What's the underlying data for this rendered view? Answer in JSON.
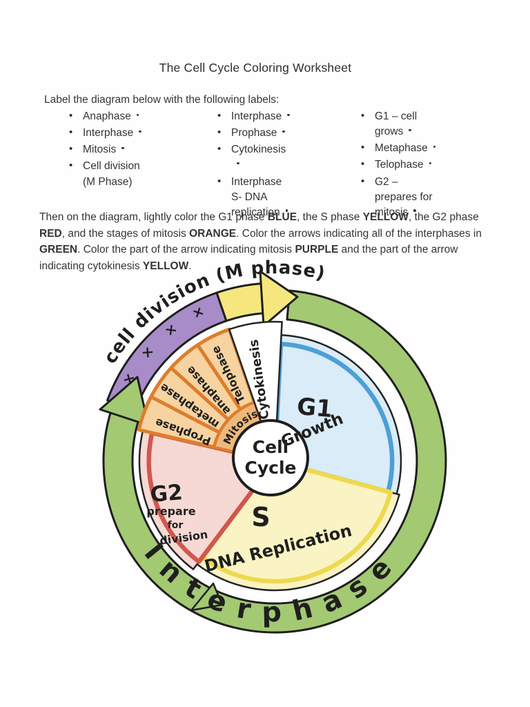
{
  "header": {
    "title": "The Cell Cycle Coloring Worksheet"
  },
  "instructions": {
    "lead": "Label the diagram below with the following labels:",
    "col1": [
      "Anaphase",
      "Interphase",
      "Mitosis",
      "Cell division (M Phase)"
    ],
    "col2": [
      "Interphase",
      "Prophase",
      "Cytokinesis",
      "Interphase S- DNA replication"
    ],
    "col3": [
      "G1 – cell grows",
      "Metaphase",
      "Telophase",
      "G2 – prepares for mitosis"
    ]
  },
  "coloring": {
    "segments": [
      {
        "t": "Then on the diagram, lightly color the G1 phase "
      },
      {
        "t": "BLUE",
        "b": 1
      },
      {
        "t": ", the S phase "
      },
      {
        "t": "YELLOW",
        "b": 1
      },
      {
        "t": ", the G2 phase "
      },
      {
        "t": "RED",
        "b": 1
      },
      {
        "t": ", and the stages of mitosis "
      },
      {
        "t": "ORANGE",
        "b": 1
      },
      {
        "t": ". Color the arrows indicating all of the interphases in "
      },
      {
        "t": "GREEN",
        "b": 1
      },
      {
        "t": ". Color the part of the arrow indicating mitosis "
      },
      {
        "t": "PURPLE",
        "b": 1
      },
      {
        "t": " and the part of the arrow indicating cytokinesis "
      },
      {
        "t": "YELLOW",
        "b": 1
      },
      {
        "t": "."
      }
    ]
  },
  "diagram": {
    "top_arrow_label": "cell division (M phase)",
    "purple_marks": "× × × ×",
    "outer_arrow_label": "Interphase",
    "center": {
      "line1": "Cell",
      "line2": "Cycle"
    },
    "g1": {
      "label": "G1",
      "sub": "Growth"
    },
    "s": {
      "label": "S",
      "sub": "DNA Replication"
    },
    "g2": {
      "label": "G2",
      "sub1": "prepare",
      "sub2": "for",
      "sub3": "division"
    },
    "mitosis_band_label": "Mitosis",
    "stage_wedges": [
      "Prophase",
      "metaphase",
      "anaphase",
      "Telophase"
    ],
    "cytokinesis_label": "Cytokinesis",
    "colors": {
      "green": "#a3c973",
      "purple": "#a78cc8",
      "yellow_arrow": "#f5e77d",
      "g1_fill": "#d9ecf7",
      "g1_accent": "#4d9fd6",
      "s_fill": "#faf4c4",
      "s_accent": "#eed94e",
      "g2_fill": "#f6d9d4",
      "g2_accent": "#d2574d",
      "orange_fill": "#f6d3a0",
      "orange_accent": "#de7d2c",
      "mitosis_band_fill": "#edb97b",
      "white": "#ffffff"
    }
  }
}
